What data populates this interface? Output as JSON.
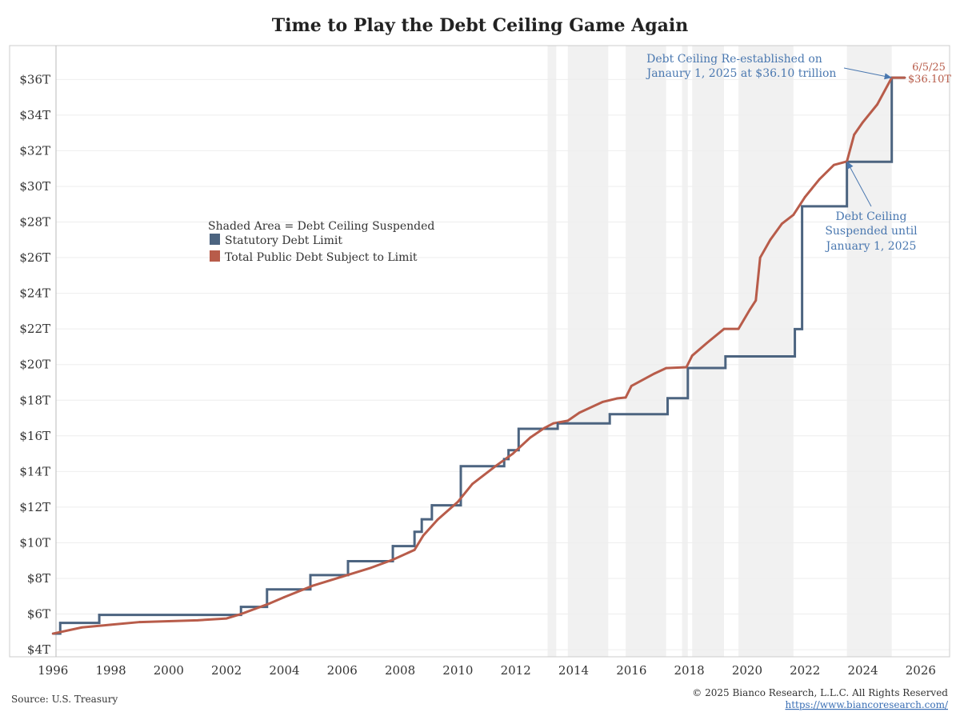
{
  "chart_data": {
    "type": "line",
    "title": "Time to Play the Debt Ceiling Game Again",
    "xlabel": "",
    "ylabel": "",
    "xlim": [
      1994.5,
      2027.0
    ],
    "ylim": [
      3.6,
      37.9
    ],
    "x_ticks": [
      1996,
      1998,
      2000,
      2002,
      2004,
      2006,
      2008,
      2010,
      2012,
      2014,
      2016,
      2018,
      2020,
      2022,
      2024,
      2026
    ],
    "x_tick_labels": [
      "1996",
      "1998",
      "2000",
      "2002",
      "2004",
      "2006",
      "2008",
      "2010",
      "2012",
      "2014",
      "2016",
      "2018",
      "2020",
      "2022",
      "2024",
      "2026"
    ],
    "y_ticks": [
      4,
      6,
      8,
      10,
      12,
      14,
      16,
      18,
      20,
      22,
      24,
      26,
      28,
      30,
      32,
      34,
      36
    ],
    "y_tick_labels": [
      "$4T",
      "$6T",
      "$8T",
      "$10T",
      "$12T",
      "$14T",
      "$16T",
      "$18T",
      "$20T",
      "$22T",
      "$24T",
      "$26T",
      "$28T",
      "$30T",
      "$32T",
      "$34T",
      "$36T"
    ],
    "grid": "horizontal",
    "legend_title": "Shaded Area = Debt Ceiling Suspended",
    "legend_position": "center-left",
    "suspension_periods": [
      [
        2013.1,
        2013.4
      ],
      [
        2013.8,
        2015.2
      ],
      [
        2015.8,
        2017.2
      ],
      [
        2017.75,
        2017.95
      ],
      [
        2018.1,
        2019.2
      ],
      [
        2019.7,
        2021.6
      ],
      [
        2023.45,
        2025.0
      ]
    ],
    "series": [
      {
        "name": "Statutory Debt Limit",
        "color": "#4c6480",
        "step": true,
        "points": [
          [
            1996.0,
            4.9
          ],
          [
            1996.25,
            5.5
          ],
          [
            1997.6,
            5.95
          ],
          [
            2002.5,
            6.4
          ],
          [
            2003.4,
            7.384
          ],
          [
            2004.9,
            8.184
          ],
          [
            2006.2,
            8.965
          ],
          [
            2007.75,
            9.815
          ],
          [
            2008.5,
            10.615
          ],
          [
            2008.75,
            11.315
          ],
          [
            2009.1,
            12.104
          ],
          [
            2010.1,
            14.294
          ],
          [
            2011.6,
            14.694
          ],
          [
            2011.75,
            15.194
          ],
          [
            2012.1,
            16.394
          ],
          [
            2013.45,
            16.699
          ],
          [
            2015.25,
            17.212
          ],
          [
            2017.25,
            18.113
          ],
          [
            2017.95,
            19.809
          ],
          [
            2019.25,
            20.456
          ],
          [
            2021.65,
            21.988
          ],
          [
            2021.9,
            28.881
          ],
          [
            2023.45,
            31.381
          ],
          [
            2025.0,
            36.1
          ],
          [
            2025.45,
            36.1
          ]
        ]
      },
      {
        "name": "Total Public Debt Subject to Limit",
        "color": "#b85c4a",
        "step": false,
        "points": [
          [
            1996.0,
            4.9
          ],
          [
            1997.0,
            5.25
          ],
          [
            1998.0,
            5.4
          ],
          [
            1999.0,
            5.55
          ],
          [
            2000.0,
            5.6
          ],
          [
            2001.0,
            5.65
          ],
          [
            2002.0,
            5.75
          ],
          [
            2002.5,
            6.0
          ],
          [
            2003.0,
            6.3
          ],
          [
            2003.5,
            6.6
          ],
          [
            2004.0,
            6.95
          ],
          [
            2005.0,
            7.6
          ],
          [
            2006.0,
            8.1
          ],
          [
            2007.0,
            8.6
          ],
          [
            2007.75,
            9.05
          ],
          [
            2008.5,
            9.6
          ],
          [
            2008.8,
            10.4
          ],
          [
            2009.3,
            11.3
          ],
          [
            2010.0,
            12.3
          ],
          [
            2010.5,
            13.3
          ],
          [
            2011.3,
            14.3
          ],
          [
            2011.9,
            15.0
          ],
          [
            2012.5,
            15.9
          ],
          [
            2013.0,
            16.45
          ],
          [
            2013.3,
            16.7
          ],
          [
            2013.8,
            16.85
          ],
          [
            2014.2,
            17.3
          ],
          [
            2015.0,
            17.9
          ],
          [
            2015.5,
            18.1
          ],
          [
            2015.8,
            18.15
          ],
          [
            2016.0,
            18.8
          ],
          [
            2016.8,
            19.5
          ],
          [
            2017.2,
            19.8
          ],
          [
            2017.9,
            19.85
          ],
          [
            2018.1,
            20.5
          ],
          [
            2018.6,
            21.2
          ],
          [
            2019.2,
            22.0
          ],
          [
            2019.7,
            22.0
          ],
          [
            2020.1,
            23.1
          ],
          [
            2020.3,
            23.6
          ],
          [
            2020.45,
            26.0
          ],
          [
            2020.8,
            27.0
          ],
          [
            2021.2,
            27.9
          ],
          [
            2021.6,
            28.4
          ],
          [
            2022.0,
            29.4
          ],
          [
            2022.5,
            30.4
          ],
          [
            2023.0,
            31.2
          ],
          [
            2023.45,
            31.4
          ],
          [
            2023.7,
            32.9
          ],
          [
            2024.0,
            33.6
          ],
          [
            2024.5,
            34.6
          ],
          [
            2025.0,
            36.1
          ],
          [
            2025.45,
            36.1
          ]
        ]
      }
    ],
    "annotations": [
      {
        "name": "reestablished-note",
        "lines": [
          "Debt Ceiling Re-established on",
          "Janaury 1, 2025 at $36.10 trillion"
        ],
        "arrow_to": [
          2025.0,
          36.1
        ]
      },
      {
        "name": "suspended-note",
        "lines": [
          "Debt Ceiling",
          "Suspended until",
          "January 1, 2025"
        ],
        "arrow_to": [
          2023.45,
          31.4
        ]
      }
    ],
    "end_labels": [
      "6/5/25",
      "$36.10T"
    ]
  },
  "footer": {
    "source": "Source: U.S. Treasury",
    "copyright": "© 2025 Bianco Research, L.L.C. All Rights Reserved",
    "url": "https://www.biancoresearch.com/"
  }
}
